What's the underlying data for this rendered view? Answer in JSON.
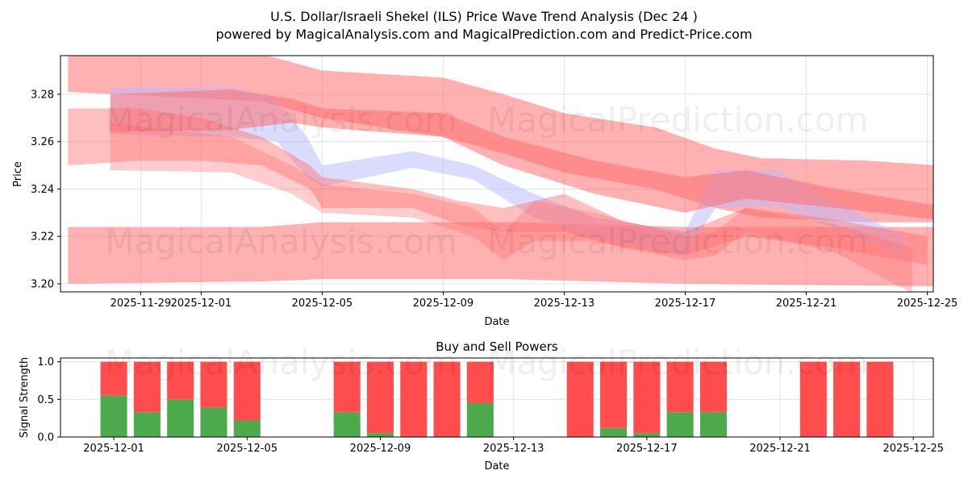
{
  "title_line1": "U.S. Dollar/Israeli Shekel (ILS) Price Wave Trend Analysis (Dec 24 )",
  "title_line2": "powered by MagicalAnalysis.com and MagicalPrediction.com and Predict-Price.com",
  "watermarks": [
    "MagicalAnalysis.com",
    "MagicalPrediction.com"
  ],
  "colors": {
    "band_red": "#ff7070",
    "band_blue": "#b8b8ff",
    "buy": "#4caa4c",
    "sell": "#ff4c4c"
  },
  "chart_data": [
    {
      "type": "area",
      "title": "",
      "xlabel": "Date",
      "ylabel": "Price",
      "x_reference_date": "2025-12-01",
      "xlim_days": [
        -4.65,
        24.2
      ],
      "ylim": [
        3.1966,
        3.2963
      ],
      "grid": true,
      "xticks": [
        {
          "day": -2,
          "label": "2025-11-29"
        },
        {
          "day": 0,
          "label": "2025-12-01"
        },
        {
          "day": 4,
          "label": "2025-12-05"
        },
        {
          "day": 8,
          "label": "2025-12-09"
        },
        {
          "day": 12,
          "label": "2025-12-13"
        },
        {
          "day": 16,
          "label": "2025-12-17"
        },
        {
          "day": 20,
          "label": "2025-12-21"
        },
        {
          "day": 24,
          "label": "2025-12-25"
        }
      ],
      "yticks": [
        {
          "value": 3.2,
          "label": "3.20"
        },
        {
          "value": 3.22,
          "label": "3.22"
        },
        {
          "value": 3.24,
          "label": "3.24"
        },
        {
          "value": 3.26,
          "label": "3.26"
        },
        {
          "value": 3.28,
          "label": "3.28"
        }
      ],
      "bands": [
        {
          "name": "wave-upper",
          "color": "red",
          "opacity": 0.55,
          "points": [
            [
              -4.4,
              3.281,
              3.297
            ],
            [
              2,
              3.277,
              3.297
            ],
            [
              4,
              3.27,
              3.29
            ],
            [
              8,
              3.262,
              3.287
            ],
            [
              10,
              3.255,
              3.28
            ],
            [
              12,
              3.247,
              3.272
            ],
            [
              15,
              3.24,
              3.266
            ],
            [
              17,
              3.232,
              3.257
            ],
            [
              18.5,
              3.228,
              3.253
            ],
            [
              22,
              3.226,
              3.252
            ],
            [
              24.3,
              3.226,
              3.25
            ]
          ]
        },
        {
          "name": "wave-lower-flat",
          "color": "red",
          "opacity": 0.55,
          "points": [
            [
              -4.4,
              3.2,
              3.224
            ],
            [
              2,
              3.201,
              3.224
            ],
            [
              4,
              3.202,
              3.226
            ],
            [
              10,
              3.202,
              3.226
            ],
            [
              16,
              3.2,
              3.224
            ],
            [
              24.3,
              3.199,
              3.224
            ]
          ]
        },
        {
          "name": "wave-blue",
          "color": "blue",
          "opacity": 0.5,
          "points": [
            [
              -3,
              3.263,
              3.283
            ],
            [
              1,
              3.262,
              3.283
            ],
            [
              2.5,
              3.26,
              3.278
            ],
            [
              3.5,
              3.245,
              3.262
            ],
            [
              4,
              3.241,
              3.25
            ],
            [
              7,
              3.249,
              3.256
            ],
            [
              9,
              3.244,
              3.25
            ],
            [
              11,
              3.228,
              3.238
            ],
            [
              13,
              3.22,
              3.228
            ],
            [
              16,
              3.212,
              3.222
            ],
            [
              17,
              3.232,
              3.248
            ],
            [
              19,
              3.233,
              3.248
            ],
            [
              23.2,
              3.212,
              3.22
            ]
          ]
        },
        {
          "name": "wave-middle",
          "color": "red",
          "opacity": 0.55,
          "points": [
            [
              -3,
              3.264,
              3.28
            ],
            [
              1,
              3.265,
              3.282
            ],
            [
              3,
              3.268,
              3.278
            ],
            [
              4,
              3.266,
              3.274
            ],
            [
              8,
              3.262,
              3.272
            ],
            [
              10,
              3.25,
              3.262
            ],
            [
              13,
              3.238,
              3.252
            ],
            [
              16,
              3.23,
              3.245
            ],
            [
              18,
              3.236,
              3.248
            ],
            [
              21,
              3.232,
              3.24
            ],
            [
              24.3,
              3.227,
              3.233
            ]
          ]
        },
        {
          "name": "wave-lower-left",
          "color": "red",
          "opacity": 0.45,
          "points": [
            [
              -4.4,
              3.25,
              3.274
            ],
            [
              -2,
              3.252,
              3.274
            ],
            [
              0,
              3.252,
              3.27
            ],
            [
              2,
              3.25,
              3.262
            ],
            [
              3.6,
              3.24,
              3.25
            ],
            [
              4,
              3.232,
              3.245
            ],
            [
              7,
              3.232,
              3.24
            ],
            [
              8.5,
              3.225,
              3.235
            ],
            [
              10,
              3.222,
              3.232
            ],
            [
              12,
              3.222,
              3.238
            ],
            [
              14,
              3.215,
              3.226
            ],
            [
              16,
              3.212,
              3.222
            ],
            [
              18,
              3.22,
              3.232
            ],
            [
              21,
              3.215,
              3.227
            ],
            [
              24,
              3.208,
              3.22
            ]
          ]
        },
        {
          "name": "wave-descending",
          "color": "red",
          "opacity": 0.35,
          "points": [
            [
              -3,
              3.248,
              3.268
            ],
            [
              1,
              3.247,
              3.262
            ],
            [
              3,
              3.238,
              3.25
            ],
            [
              4,
              3.23,
              3.242
            ],
            [
              7,
              3.228,
              3.238
            ],
            [
              9,
              3.22,
              3.232
            ],
            [
              10,
              3.21,
              3.222
            ],
            [
              11,
              3.218,
              3.235
            ],
            [
              13,
              3.218,
              3.23
            ],
            [
              16,
              3.21,
              3.22
            ],
            [
              17,
              3.212,
              3.222
            ],
            [
              18,
              3.222,
              3.232
            ],
            [
              21,
              3.213,
              3.225
            ],
            [
              23.5,
              3.196,
              3.215
            ]
          ]
        }
      ]
    },
    {
      "type": "bar",
      "title": "Buy and Sell Powers",
      "xlabel": "Date",
      "ylabel": "Signal Strength",
      "x_reference_date": "2025-12-01",
      "xlim_days": [
        -1.6,
        24.6
      ],
      "ylim": [
        0,
        1.05
      ],
      "grid": true,
      "xticks": [
        {
          "day": 0,
          "label": "2025-12-01"
        },
        {
          "day": 4,
          "label": "2025-12-05"
        },
        {
          "day": 8,
          "label": "2025-12-09"
        },
        {
          "day": 12,
          "label": "2025-12-13"
        },
        {
          "day": 16,
          "label": "2025-12-17"
        },
        {
          "day": 20,
          "label": "2025-12-21"
        },
        {
          "day": 24,
          "label": "2025-12-25"
        }
      ],
      "yticks": [
        {
          "value": 0,
          "label": "0.0"
        },
        {
          "value": 0.5,
          "label": "0.5"
        },
        {
          "value": 1.0,
          "label": "1.0"
        }
      ],
      "categories_days": [
        0,
        1,
        2,
        3,
        4,
        7,
        8,
        9,
        10,
        11,
        14,
        15,
        16,
        17,
        18,
        21,
        22,
        23
      ],
      "series": [
        {
          "name": "Buy",
          "values": [
            0.55,
            0.33,
            0.5,
            0.39,
            0.22,
            0.33,
            0.05,
            0,
            0,
            0.45,
            0,
            0.12,
            0.05,
            0.33,
            0.33,
            0,
            0,
            0
          ]
        },
        {
          "name": "Sell",
          "values": [
            0.45,
            0.67,
            0.5,
            0.61,
            0.78,
            0.67,
            0.95,
            1,
            1,
            0.55,
            1,
            0.88,
            0.95,
            0.67,
            0.67,
            1,
            1,
            1
          ]
        }
      ]
    }
  ]
}
